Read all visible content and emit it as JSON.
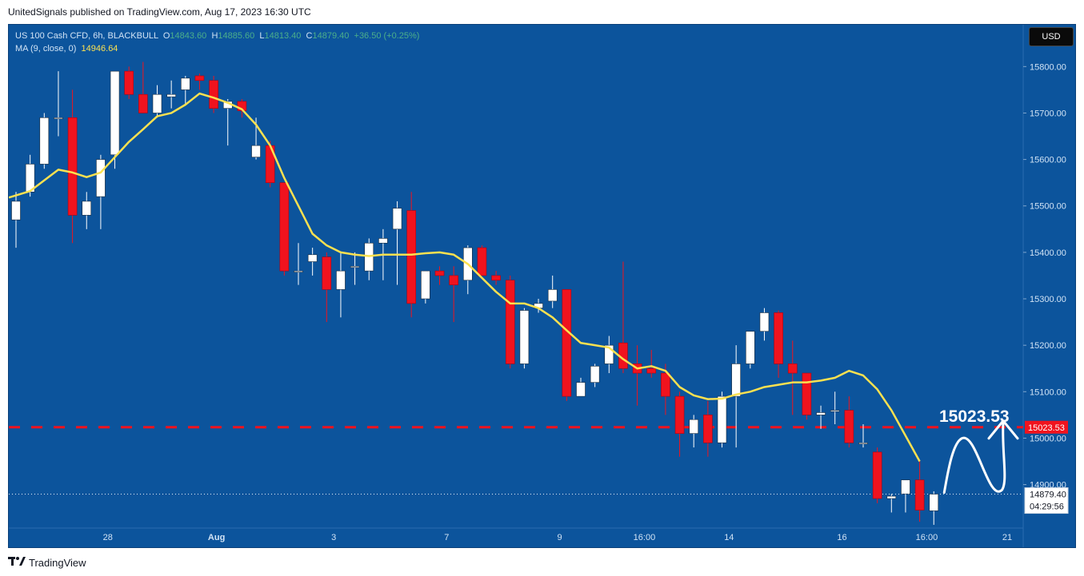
{
  "publisher_line": "UnitedSignals published on TradingView.com, Aug 17, 2023 16:30 UTC",
  "legend": {
    "symbol": "US 100 Cash CFD, 6h, BLACKBULL",
    "o_label": "O",
    "o": "14843.60",
    "h_label": "H",
    "h": "14885.60",
    "l_label": "L",
    "l": "14813.40",
    "c_label": "C",
    "c": "14879.40",
    "change": "+36.50 (+0.25%)",
    "ma_label": "MA (9, close, 0)",
    "ma_value": "14946.64"
  },
  "currency_button": "USD",
  "footer": {
    "logo_icon": "tradingview-logo-icon",
    "brand": "TradingView"
  },
  "colors": {
    "background": "#0c549c",
    "up_candle": "#ffffff",
    "down_candle": "#f0131e",
    "ma_line": "#fbe150",
    "target_line": "#f0131e",
    "projection": "#ffffff"
  },
  "chart_data": {
    "type": "candlestick",
    "ylim": [
      14815,
      15890
    ],
    "y_ticks": [
      "15800.00",
      "15700.00",
      "15600.00",
      "15500.00",
      "15400.00",
      "15300.00",
      "15200.00",
      "15100.00",
      "15000.00",
      "14900.00"
    ],
    "x_ticks": [
      "28",
      "Aug",
      "3",
      "7",
      "9",
      "16:00",
      "14",
      "16",
      "16:00",
      "21"
    ],
    "candles": [
      {
        "o": 15470,
        "h": 15530,
        "l": 15410,
        "c": 15510
      },
      {
        "o": 15530,
        "h": 15610,
        "l": 15520,
        "c": 15590
      },
      {
        "o": 15590,
        "h": 15700,
        "l": 15580,
        "c": 15690
      },
      {
        "o": 15690,
        "h": 15790,
        "l": 15650,
        "c": 15690
      },
      {
        "o": 15690,
        "h": 15750,
        "l": 15420,
        "c": 15480
      },
      {
        "o": 15480,
        "h": 15530,
        "l": 15450,
        "c": 15510
      },
      {
        "o": 15520,
        "h": 15610,
        "l": 15450,
        "c": 15600
      },
      {
        "o": 15610,
        "h": 15790,
        "l": 15580,
        "c": 15790
      },
      {
        "o": 15790,
        "h": 15800,
        "l": 15730,
        "c": 15740
      },
      {
        "o": 15740,
        "h": 15810,
        "l": 15700,
        "c": 15700
      },
      {
        "o": 15700,
        "h": 15760,
        "l": 15690,
        "c": 15740
      },
      {
        "o": 15735,
        "h": 15770,
        "l": 15710,
        "c": 15740
      },
      {
        "o": 15750,
        "h": 15780,
        "l": 15720,
        "c": 15775
      },
      {
        "o": 15780,
        "h": 15785,
        "l": 15750,
        "c": 15770
      },
      {
        "o": 15770,
        "h": 15780,
        "l": 15700,
        "c": 15710
      },
      {
        "o": 15710,
        "h": 15730,
        "l": 15630,
        "c": 15725
      },
      {
        "o": 15725,
        "h": 15730,
        "l": 15690,
        "c": 15705
      },
      {
        "o": 15605,
        "h": 15690,
        "l": 15600,
        "c": 15630
      },
      {
        "o": 15630,
        "h": 15640,
        "l": 15540,
        "c": 15550
      },
      {
        "o": 15550,
        "h": 15550,
        "l": 15350,
        "c": 15360
      },
      {
        "o": 15360,
        "h": 15420,
        "l": 15330,
        "c": 15360
      },
      {
        "o": 15380,
        "h": 15410,
        "l": 15350,
        "c": 15395
      },
      {
        "o": 15390,
        "h": 15400,
        "l": 15250,
        "c": 15320
      },
      {
        "o": 15320,
        "h": 15400,
        "l": 15260,
        "c": 15360
      },
      {
        "o": 15370,
        "h": 15400,
        "l": 15330,
        "c": 15370
      },
      {
        "o": 15360,
        "h": 15430,
        "l": 15340,
        "c": 15420
      },
      {
        "o": 15420,
        "h": 15450,
        "l": 15340,
        "c": 15430
      },
      {
        "o": 15450,
        "h": 15510,
        "l": 15330,
        "c": 15495
      },
      {
        "o": 15490,
        "h": 15530,
        "l": 15260,
        "c": 15290
      },
      {
        "o": 15300,
        "h": 15360,
        "l": 15290,
        "c": 15360
      },
      {
        "o": 15360,
        "h": 15370,
        "l": 15330,
        "c": 15350
      },
      {
        "o": 15350,
        "h": 15370,
        "l": 15250,
        "c": 15330
      },
      {
        "o": 15340,
        "h": 15415,
        "l": 15310,
        "c": 15410
      },
      {
        "o": 15410,
        "h": 15415,
        "l": 15350,
        "c": 15350
      },
      {
        "o": 15350,
        "h": 15360,
        "l": 15330,
        "c": 15340
      },
      {
        "o": 15340,
        "h": 15350,
        "l": 15150,
        "c": 15160
      },
      {
        "o": 15160,
        "h": 15280,
        "l": 15150,
        "c": 15275
      },
      {
        "o": 15280,
        "h": 15300,
        "l": 15270,
        "c": 15290
      },
      {
        "o": 15295,
        "h": 15350,
        "l": 15280,
        "c": 15320
      },
      {
        "o": 15320,
        "h": 15320,
        "l": 15080,
        "c": 15090
      },
      {
        "o": 15090,
        "h": 15130,
        "l": 15090,
        "c": 15120
      },
      {
        "o": 15120,
        "h": 15160,
        "l": 15110,
        "c": 15155
      },
      {
        "o": 15160,
        "h": 15220,
        "l": 15140,
        "c": 15200
      },
      {
        "o": 15205,
        "h": 15380,
        "l": 15140,
        "c": 15150
      },
      {
        "o": 15160,
        "h": 15200,
        "l": 15070,
        "c": 15140
      },
      {
        "o": 15150,
        "h": 15190,
        "l": 15130,
        "c": 15140
      },
      {
        "o": 15140,
        "h": 15160,
        "l": 15050,
        "c": 15090
      },
      {
        "o": 15090,
        "h": 15100,
        "l": 14960,
        "c": 15010
      },
      {
        "o": 15010,
        "h": 15050,
        "l": 14980,
        "c": 15040
      },
      {
        "o": 15050,
        "h": 15080,
        "l": 14960,
        "c": 14990
      },
      {
        "o": 14990,
        "h": 15100,
        "l": 14980,
        "c": 15090
      },
      {
        "o": 15090,
        "h": 15200,
        "l": 14980,
        "c": 15160
      },
      {
        "o": 15160,
        "h": 15230,
        "l": 15150,
        "c": 15230
      },
      {
        "o": 15230,
        "h": 15280,
        "l": 15210,
        "c": 15270
      },
      {
        "o": 15270,
        "h": 15275,
        "l": 15130,
        "c": 15160
      },
      {
        "o": 15160,
        "h": 15210,
        "l": 15050,
        "c": 15140
      },
      {
        "o": 15140,
        "h": 15140,
        "l": 15040,
        "c": 15050
      },
      {
        "o": 15050,
        "h": 15070,
        "l": 15020,
        "c": 15055
      },
      {
        "o": 15060,
        "h": 15100,
        "l": 15030,
        "c": 15060
      },
      {
        "o": 15060,
        "h": 15090,
        "l": 14980,
        "c": 14990
      },
      {
        "o": 14990,
        "h": 15030,
        "l": 14980,
        "c": 14990
      },
      {
        "o": 14970,
        "h": 14980,
        "l": 14860,
        "c": 14870
      },
      {
        "o": 14870,
        "h": 14880,
        "l": 14840,
        "c": 14875
      },
      {
        "o": 14880,
        "h": 14910,
        "l": 14840,
        "c": 14910
      },
      {
        "o": 14910,
        "h": 14950,
        "l": 14820,
        "c": 14845
      },
      {
        "o": 14843.6,
        "h": 14885.6,
        "l": 14813.4,
        "c": 14879.4
      }
    ],
    "moving_average": {
      "name": "MA (9, close, 0)",
      "values": [
        15518,
        15532,
        15555,
        15578,
        15572,
        15562,
        15572,
        15605,
        15638,
        15665,
        15693,
        15700,
        15718,
        15742,
        15733,
        15722,
        15708,
        15675,
        15630,
        15560,
        15500,
        15440,
        15415,
        15400,
        15395,
        15392,
        15395,
        15395,
        15395,
        15398,
        15400,
        15395,
        15375,
        15345,
        15315,
        15290,
        15290,
        15280,
        15260,
        15232,
        15205,
        15200,
        15195,
        15170,
        15150,
        15155,
        15145,
        15110,
        15092,
        15084,
        15085,
        15094,
        15100,
        15110,
        15115,
        15120,
        15120,
        15124,
        15130,
        15145,
        15135,
        15105,
        15060,
        15005,
        14950
      ]
    },
    "horizontal_level": {
      "value": 15023.53,
      "label": "15023.53",
      "axis_label": "15023.53"
    },
    "annotation_text": "15023.53",
    "last_price": {
      "value": 14879.4,
      "label": "14879.40",
      "countdown": "04:29:56"
    },
    "projection": "zigzag arrow up from last price toward target level"
  }
}
